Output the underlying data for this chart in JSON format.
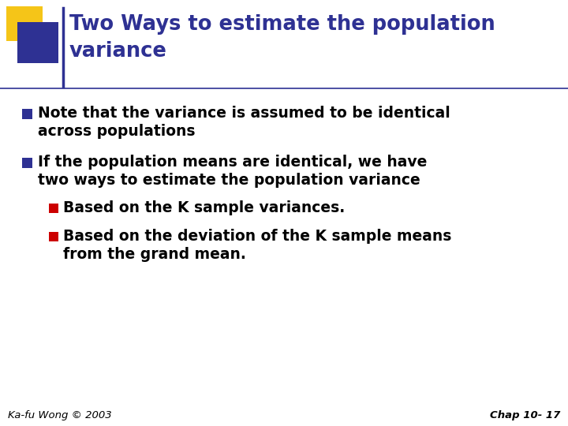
{
  "title_line1": "Two Ways to estimate the population",
  "title_line2": "variance",
  "title_color": "#2E3193",
  "background_color": "#FFFFFF",
  "bullet1_square_color": "#2E3193",
  "bullet2_square_color": "#2E3193",
  "sub_bullet_square_color": "#CC0000",
  "bullet1_text_line1": "Note that the variance is assumed to be identical",
  "bullet1_text_line2": "across populations",
  "bullet2_text_line1": "If the population means are identical, we have",
  "bullet2_text_line2": "two ways to estimate the population variance",
  "sub_bullet1": "Based on the K sample variances.",
  "sub_bullet2_line1": "Based on the deviation of the K sample means",
  "sub_bullet2_line2": "from the grand mean.",
  "footer_left": "Ka-fu Wong © 2003",
  "footer_right": "Chap 10- 17",
  "footer_color": "#000000",
  "header_square_yellow": "#F5C518",
  "header_square_blue": "#2E3193",
  "header_line_color": "#2E3193",
  "text_color": "#000000"
}
